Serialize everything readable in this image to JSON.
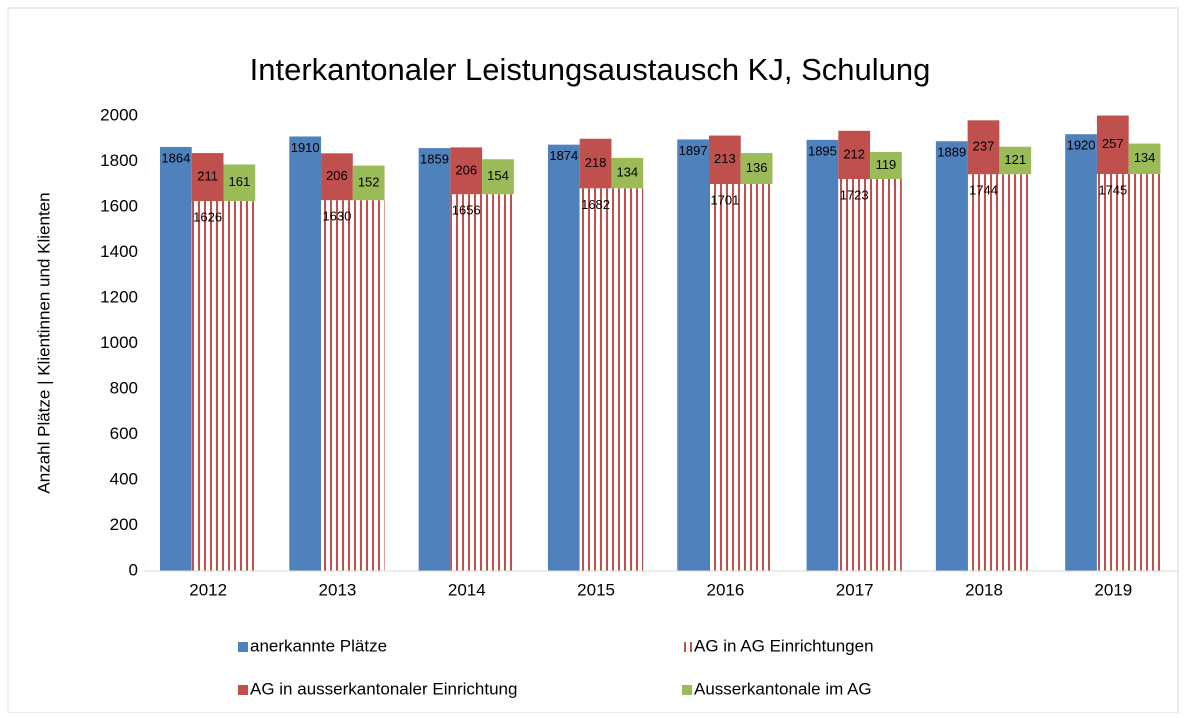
{
  "chart_data": {
    "type": "bar",
    "title": "Interkantonaler Leistungsaustausch KJ, Schulung",
    "y_label": "Anzahl Plätze | Klientinnen und Klienten",
    "categories": [
      "2012",
      "2013",
      "2014",
      "2015",
      "2016",
      "2017",
      "2018",
      "2019"
    ],
    "series": [
      {
        "name": "anerkannte Plätze",
        "color": "#4f81bd",
        "values": [
          1864,
          1910,
          1859,
          1874,
          1897,
          1895,
          1889,
          1920
        ]
      },
      {
        "name": "AG in AG Einrichtungen",
        "color": "#c0504d",
        "pattern": "stripes",
        "values": [
          1626,
          1630,
          1656,
          1682,
          1701,
          1723,
          1744,
          1745
        ]
      },
      {
        "name": "AG in ausserkantonaler Einrichtung",
        "color": "#c0504d",
        "values": [
          211,
          206,
          206,
          218,
          213,
          212,
          237,
          257
        ]
      },
      {
        "name": "Ausserkantonale im AG",
        "color": "#9bbb59",
        "values": [
          161,
          152,
          154,
          134,
          136,
          119,
          121,
          134
        ]
      }
    ],
    "ylim": [
      0,
      2000
    ],
    "yticks": [
      0,
      200,
      400,
      600,
      800,
      1000,
      1200,
      1400,
      1600,
      1800,
      2000
    ],
    "grid": false
  }
}
